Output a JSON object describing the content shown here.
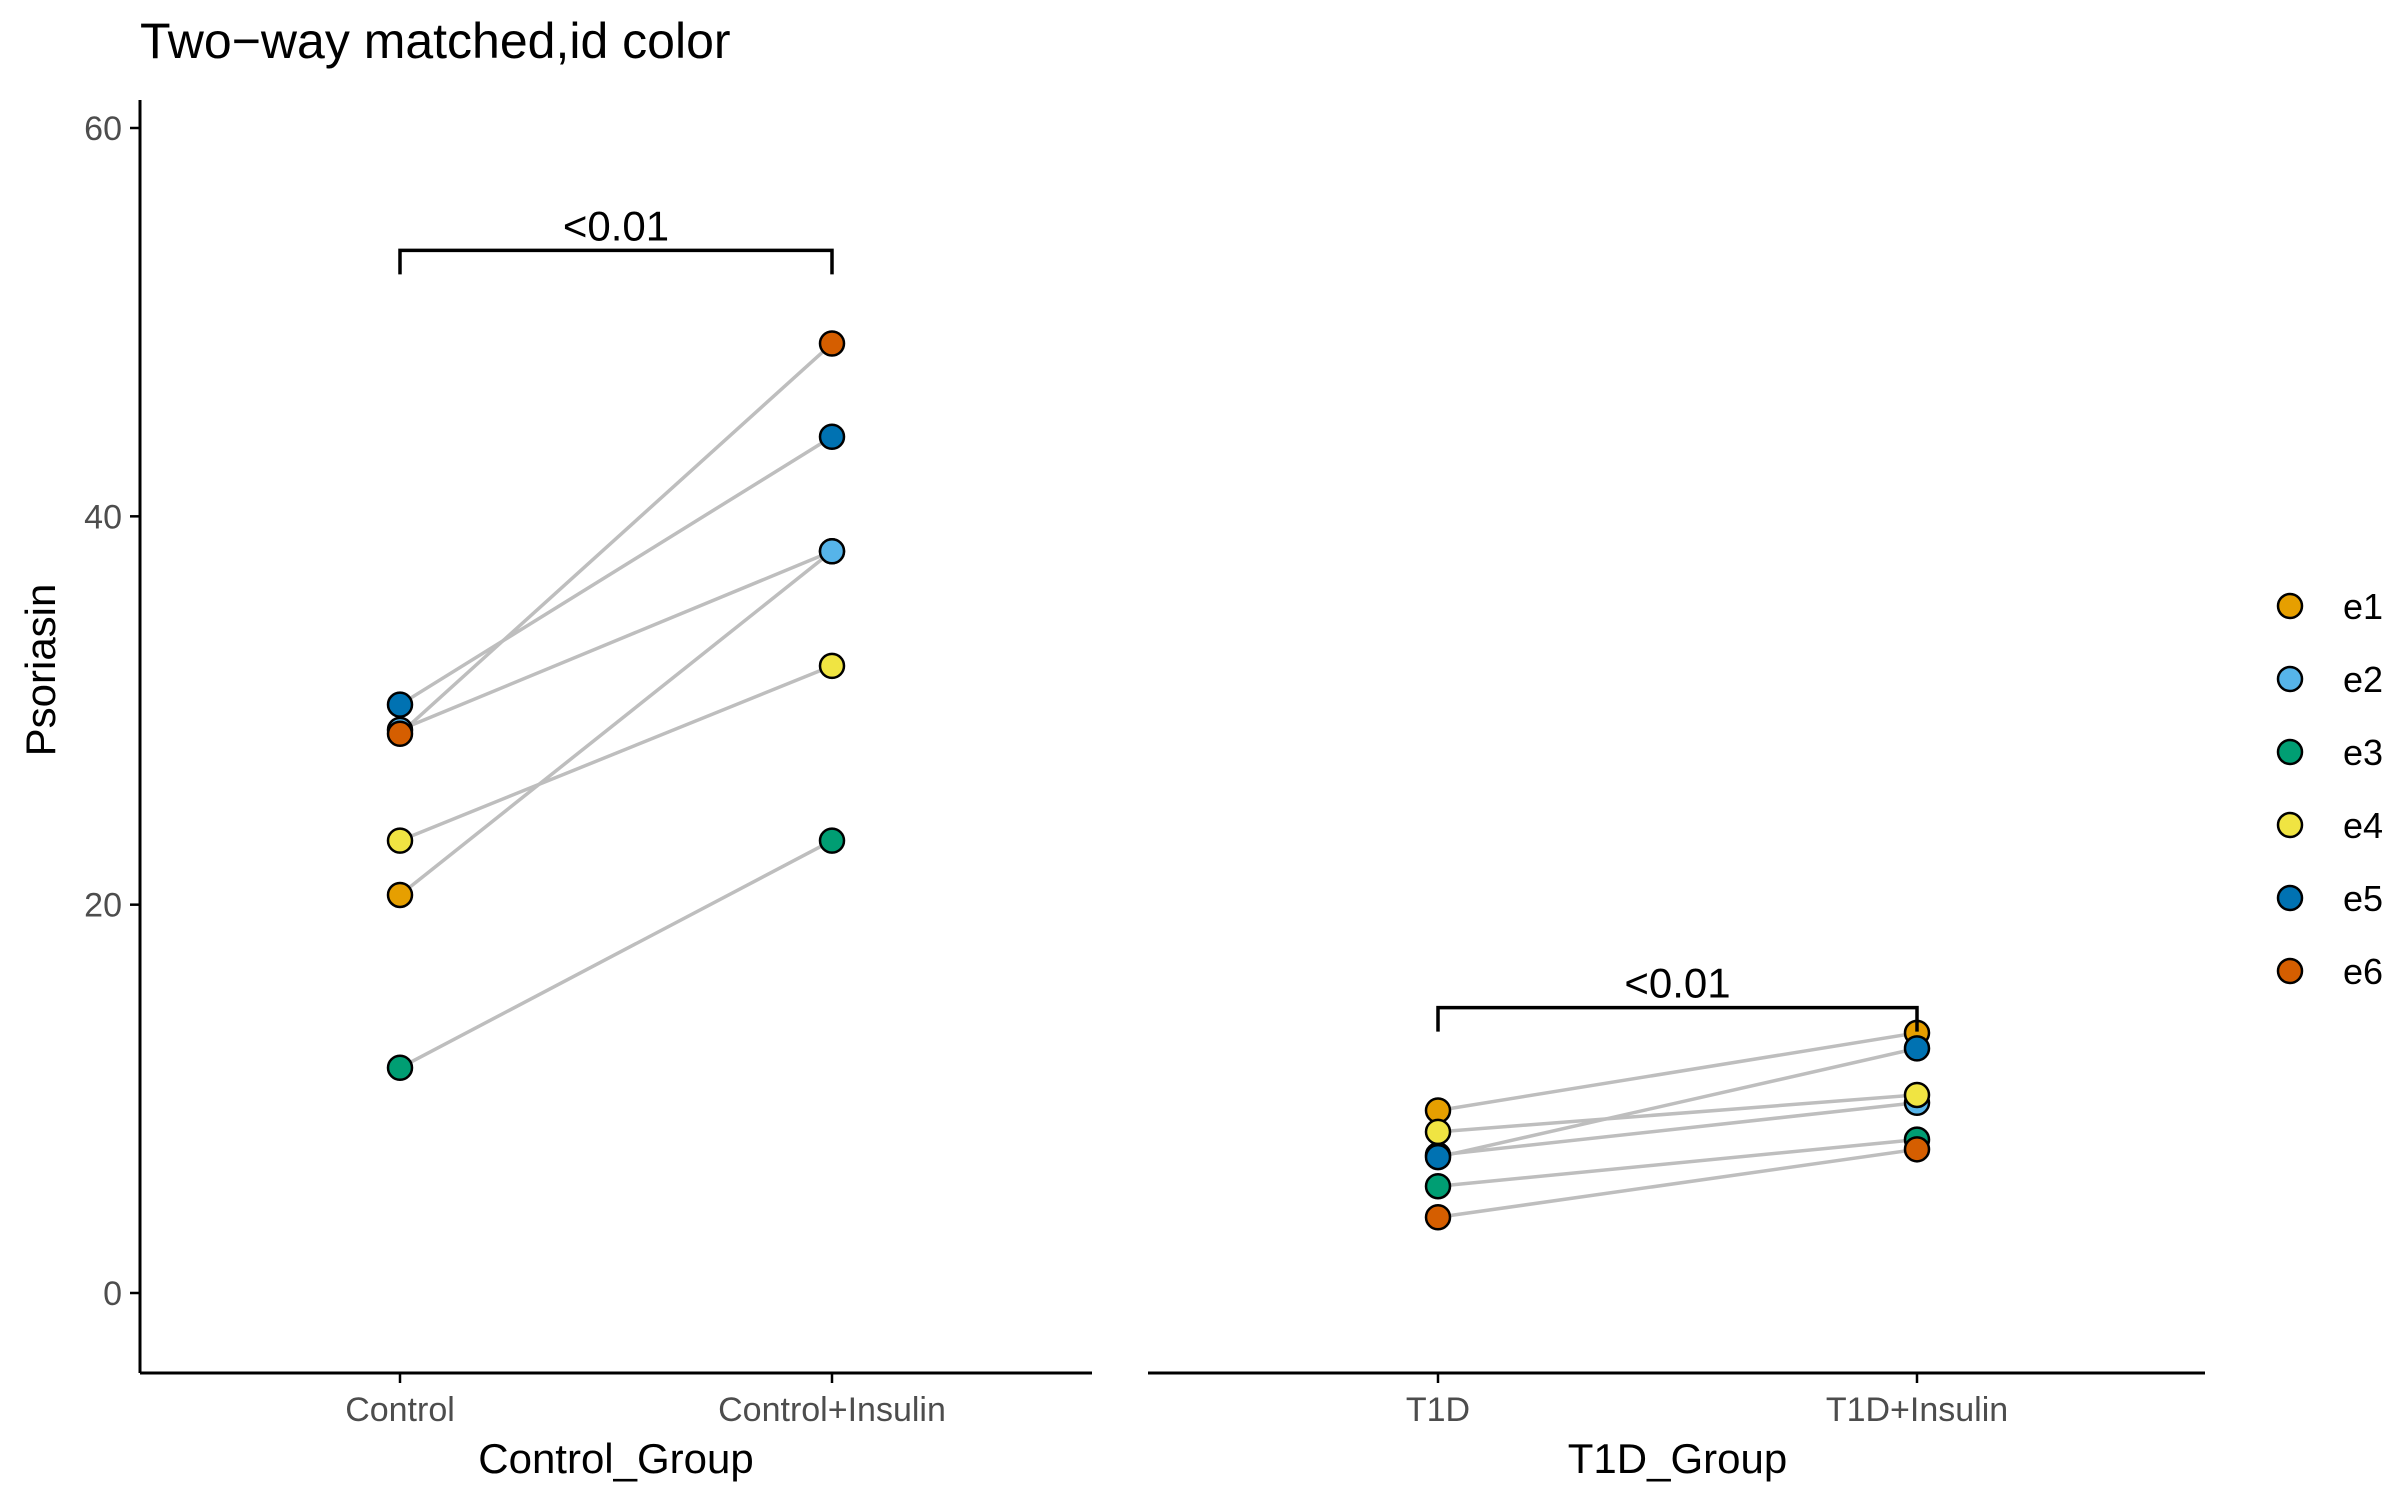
{
  "chart_data": {
    "type": "scatter",
    "title": "Two−way matched,id color",
    "ylabel": "Psoriasin",
    "ylim": [
      -4,
      61.5
    ],
    "yticks": [
      0,
      20,
      40,
      60
    ],
    "ytick_labels": [
      "0",
      "20",
      "40",
      "60"
    ],
    "grid": false,
    "legend_position": "right",
    "legend": [
      {
        "name": "e1",
        "color": "#E69F00"
      },
      {
        "name": "e2",
        "color": "#56B4E9"
      },
      {
        "name": "e3",
        "color": "#009E73"
      },
      {
        "name": "e4",
        "color": "#F0E442"
      },
      {
        "name": "e5",
        "color": "#0072B2"
      },
      {
        "name": "e6",
        "color": "#D55E00"
      }
    ],
    "line_color": "#BEBEBE",
    "panels": [
      {
        "xlabel": "Control_Group",
        "categories": [
          "Control",
          "Control+Insulin"
        ],
        "pvalue": {
          "label": "<0.01",
          "y": 53.7
        },
        "pairs": [
          {
            "id": "e1",
            "values": [
              20.5,
              38.2
            ]
          },
          {
            "id": "e2",
            "values": [
              29.0,
              38.2
            ]
          },
          {
            "id": "e3",
            "values": [
              11.6,
              23.3
            ]
          },
          {
            "id": "e4",
            "values": [
              23.3,
              32.3
            ]
          },
          {
            "id": "e5",
            "values": [
              30.3,
              44.1
            ]
          },
          {
            "id": "e6",
            "values": [
              28.8,
              48.9
            ]
          }
        ]
      },
      {
        "xlabel": "T1D_Group",
        "categories": [
          "T1D",
          "T1D+Insulin"
        ],
        "pvalue": {
          "label": "<0.01",
          "y": 14.7
        },
        "pairs": [
          {
            "id": "e1",
            "values": [
              9.4,
              13.4
            ]
          },
          {
            "id": "e2",
            "values": [
              7.1,
              9.8
            ]
          },
          {
            "id": "e3",
            "values": [
              5.5,
              7.9
            ]
          },
          {
            "id": "e4",
            "values": [
              8.3,
              10.2
            ]
          },
          {
            "id": "e5",
            "values": [
              7.0,
              12.6
            ]
          },
          {
            "id": "e6",
            "values": [
              3.9,
              7.4
            ]
          }
        ]
      }
    ]
  }
}
